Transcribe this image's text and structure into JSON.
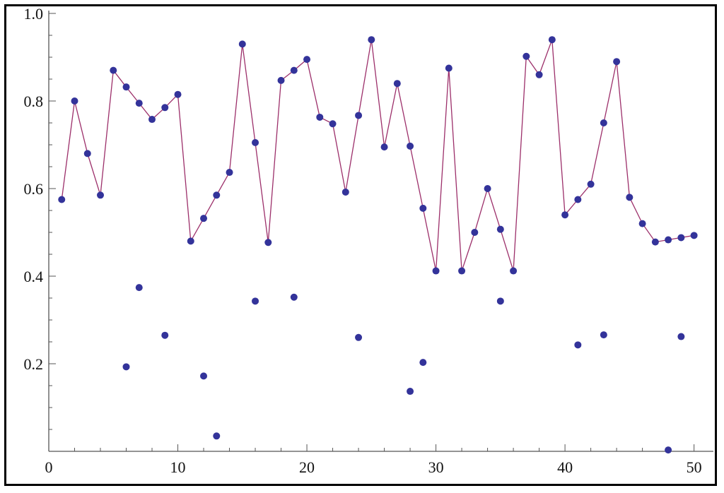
{
  "chart_data": {
    "type": "scatter",
    "title": "",
    "xlabel": "",
    "ylabel": "",
    "xlim": [
      0,
      51.5
    ],
    "ylim": [
      0,
      1.0
    ],
    "x_ticks": [
      0,
      10,
      20,
      30,
      40,
      50
    ],
    "y_ticks": [
      0.2,
      0.4,
      0.6,
      0.8,
      1.0
    ],
    "x_tick_labels": [
      "0",
      "10",
      "20",
      "30",
      "40",
      "50"
    ],
    "y_tick_labels": [
      "0.2",
      "0.4",
      "0.6",
      "0.8",
      "1.0"
    ],
    "grid": false,
    "legend": "none",
    "series": [
      {
        "style": "line+markers",
        "line_color": "#9c2f6a",
        "marker_color": "#33339a",
        "x": [
          1,
          2,
          3,
          4,
          5,
          6,
          7,
          8,
          9,
          10,
          11,
          12,
          13,
          14,
          15,
          16,
          17,
          18,
          19,
          20,
          21,
          22,
          23,
          24,
          25,
          26,
          27,
          28,
          29,
          30,
          31,
          32,
          33,
          34,
          35,
          36,
          37,
          38,
          39,
          40,
          41,
          42,
          43,
          44,
          45,
          46,
          47,
          48,
          49,
          50
        ],
        "y": [
          0.575,
          0.8,
          0.68,
          0.585,
          0.87,
          0.832,
          0.795,
          0.758,
          0.785,
          0.815,
          0.48,
          0.532,
          0.585,
          0.637,
          0.93,
          0.705,
          0.477,
          0.847,
          0.87,
          0.895,
          0.763,
          0.748,
          0.592,
          0.767,
          0.94,
          0.695,
          0.84,
          0.697,
          0.555,
          0.412,
          0.875,
          0.412,
          0.5,
          0.6,
          0.507,
          0.412,
          0.902,
          0.86,
          0.94,
          0.54,
          0.575,
          0.61,
          0.75,
          0.89,
          0.58,
          0.52,
          0.478,
          0.483,
          0.488,
          0.493
        ]
      },
      {
        "style": "markers",
        "marker_color": "#33339a",
        "x": [
          6,
          7,
          9,
          12,
          13,
          16,
          19,
          24,
          28,
          29,
          35,
          41,
          43,
          48,
          49
        ],
        "y": [
          0.193,
          0.374,
          0.265,
          0.172,
          0.035,
          0.343,
          0.352,
          0.26,
          0.137,
          0.203,
          0.343,
          0.243,
          0.266,
          0.003,
          0.262
        ]
      }
    ]
  }
}
